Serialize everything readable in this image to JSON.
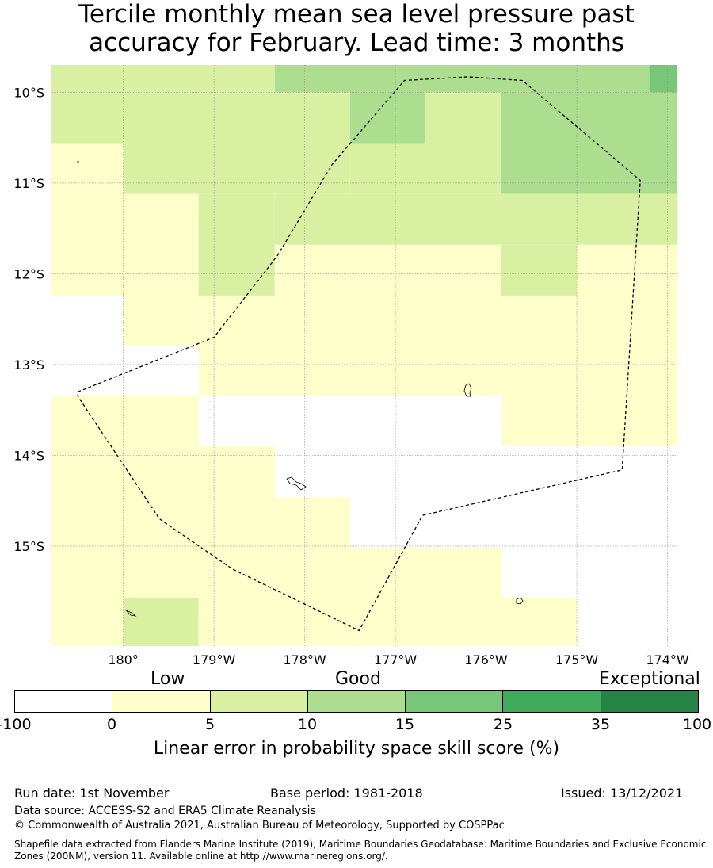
{
  "title": {
    "line1": "Tercile monthly mean sea level pressure past",
    "line2": "accuracy for February. Lead time: 3 months"
  },
  "map": {
    "lat_labels": [
      "10°S",
      "11°S",
      "12°S",
      "13°S",
      "14°S",
      "15°S"
    ],
    "lon_labels": [
      "180°",
      "179°W",
      "178°W",
      "177°W",
      "176°W",
      "175°W",
      "174°W"
    ],
    "lat_range": [
      -16.1,
      -9.7
    ],
    "lon_range": [
      -180.8,
      -173.9
    ],
    "grid_lons": [
      180.0,
      181.0,
      182.0,
      183.0,
      184.0,
      185.0,
      186.0
    ],
    "grid_lats": [
      -10,
      -11,
      -12,
      -13,
      -14,
      -15
    ],
    "cells": [
      {
        "lon0": -180.8,
        "lon1": -180.0,
        "lat0": -10.57,
        "lat1": -9.7,
        "cat": 2
      },
      {
        "lon0": -180.0,
        "lon1": -178.33,
        "lat0": -10.0,
        "lat1": -9.7,
        "cat": 2
      },
      {
        "lon0": -178.33,
        "lon1": -174.2,
        "lat0": -10.0,
        "lat1": -9.7,
        "cat": 3
      },
      {
        "lon0": -174.2,
        "lon1": -173.9,
        "lat0": -10.0,
        "lat1": -9.7,
        "cat": 4
      },
      {
        "lon0": -180.0,
        "lon1": -177.5,
        "lat0": -11.12,
        "lat1": -10.0,
        "cat": 2
      },
      {
        "lon0": -177.5,
        "lon1": -176.67,
        "lat0": -10.57,
        "lat1": -10.0,
        "cat": 3
      },
      {
        "lon0": -176.67,
        "lon1": -175.83,
        "lat0": -11.12,
        "lat1": -10.0,
        "cat": 2
      },
      {
        "lon0": -175.83,
        "lon1": -173.9,
        "lat0": -11.12,
        "lat1": -10.0,
        "cat": 3
      },
      {
        "lon0": -177.5,
        "lon1": -176.67,
        "lat0": -11.12,
        "lat1": -10.57,
        "cat": 2
      },
      {
        "lon0": -180.8,
        "lon1": -180.0,
        "lat0": -12.24,
        "lat1": -10.57,
        "cat": 1
      },
      {
        "lon0": -180.0,
        "lon1": -179.17,
        "lat0": -12.79,
        "lat1": -11.12,
        "cat": 1
      },
      {
        "lon0": -179.17,
        "lon1": -178.33,
        "lat0": -12.24,
        "lat1": -11.12,
        "cat": 2
      },
      {
        "lon0": -178.33,
        "lon1": -175.83,
        "lat0": -11.68,
        "lat1": -11.12,
        "cat": 2
      },
      {
        "lon0": -175.83,
        "lon1": -173.9,
        "lat0": -11.68,
        "lat1": -11.12,
        "cat": 2
      },
      {
        "lon0": -175.83,
        "lon1": -175.0,
        "lat0": -12.24,
        "lat1": -11.68,
        "cat": 2
      },
      {
        "lon0": -178.33,
        "lon1": -175.83,
        "lat0": -12.24,
        "lat1": -11.68,
        "cat": 1
      },
      {
        "lon0": -175.0,
        "lon1": -173.9,
        "lat0": -12.24,
        "lat1": -11.68,
        "cat": 1
      },
      {
        "lon0": -179.17,
        "lon1": -175.83,
        "lat0": -13.35,
        "lat1": -12.24,
        "cat": 1
      },
      {
        "lon0": -175.83,
        "lon1": -173.9,
        "lat0": -13.9,
        "lat1": -12.24,
        "cat": 1
      },
      {
        "lon0": -180.0,
        "lon1": -179.17,
        "lat0": -12.79,
        "lat1": -12.24,
        "cat": 1
      },
      {
        "lon0": -180.8,
        "lon1": -179.17,
        "lat0": -13.9,
        "lat1": -13.35,
        "cat": 1
      },
      {
        "lon0": -180.8,
        "lon1": -178.33,
        "lat0": -15.57,
        "lat1": -13.9,
        "cat": 1
      },
      {
        "lon0": -178.33,
        "lon1": -177.5,
        "lat0": -15.02,
        "lat1": -14.46,
        "cat": 1
      },
      {
        "lon0": -178.33,
        "lon1": -175.83,
        "lat0": -15.57,
        "lat1": -15.02,
        "cat": 1
      },
      {
        "lon0": -180.8,
        "lon1": -180.0,
        "lat0": -16.1,
        "lat1": -15.57,
        "cat": 1
      },
      {
        "lon0": -180.0,
        "lon1": -179.17,
        "lat0": -16.1,
        "lat1": -15.57,
        "cat": 2
      },
      {
        "lon0": -179.17,
        "lon1": -175.0,
        "lat0": -16.1,
        "lat1": -15.57,
        "cat": 1
      }
    ],
    "boundary": [
      [
        -180.5,
        -13.3
      ],
      [
        -179.0,
        -12.7
      ],
      [
        -178.3,
        -11.8
      ],
      [
        -177.7,
        -10.8
      ],
      [
        -176.9,
        -9.87
      ],
      [
        -176.2,
        -9.83
      ],
      [
        -175.6,
        -9.87
      ],
      [
        -174.3,
        -10.97
      ],
      [
        -174.5,
        -14.16
      ],
      [
        -176.7,
        -14.66
      ],
      [
        -177.4,
        -15.93
      ],
      [
        -178.8,
        -15.25
      ],
      [
        -179.6,
        -14.7
      ],
      [
        -180.5,
        -13.35
      ],
      [
        -180.5,
        -13.3
      ]
    ]
  },
  "legend": {
    "low": "Low",
    "good": "Good",
    "exceptional": "Exceptional",
    "colors": [
      "#ffffff",
      "#ffffcc",
      "#d9f0a3",
      "#addd8e",
      "#78c679",
      "#41ab5d",
      "#238443"
    ],
    "ticks": [
      "-100",
      "0",
      "5",
      "10",
      "15",
      "25",
      "35",
      "100"
    ],
    "axis_title": "Linear error in probability space skill score (%)"
  },
  "footer": {
    "run_date": "Run date: 1st November",
    "base_period": "Base period: 1981-2018",
    "issued": "Issued: 13/12/2021",
    "data_source": "Data source: ACCESS-S2 and ERA5 Climate Reanalysis",
    "copyright": "© Commonwealth of Australia 2021, Australian Bureau of Meteorology, Supported by COSPPac",
    "shapefile_line1": "Shapefile data extracted from Flanders Marine Institute (2019), Maritime Boundaries Geodatabase: Maritime Boundaries and Exclusive Economic",
    "shapefile_line2": "Zones (200NM), version 11. Available online at http://www.marineregions.org/."
  }
}
